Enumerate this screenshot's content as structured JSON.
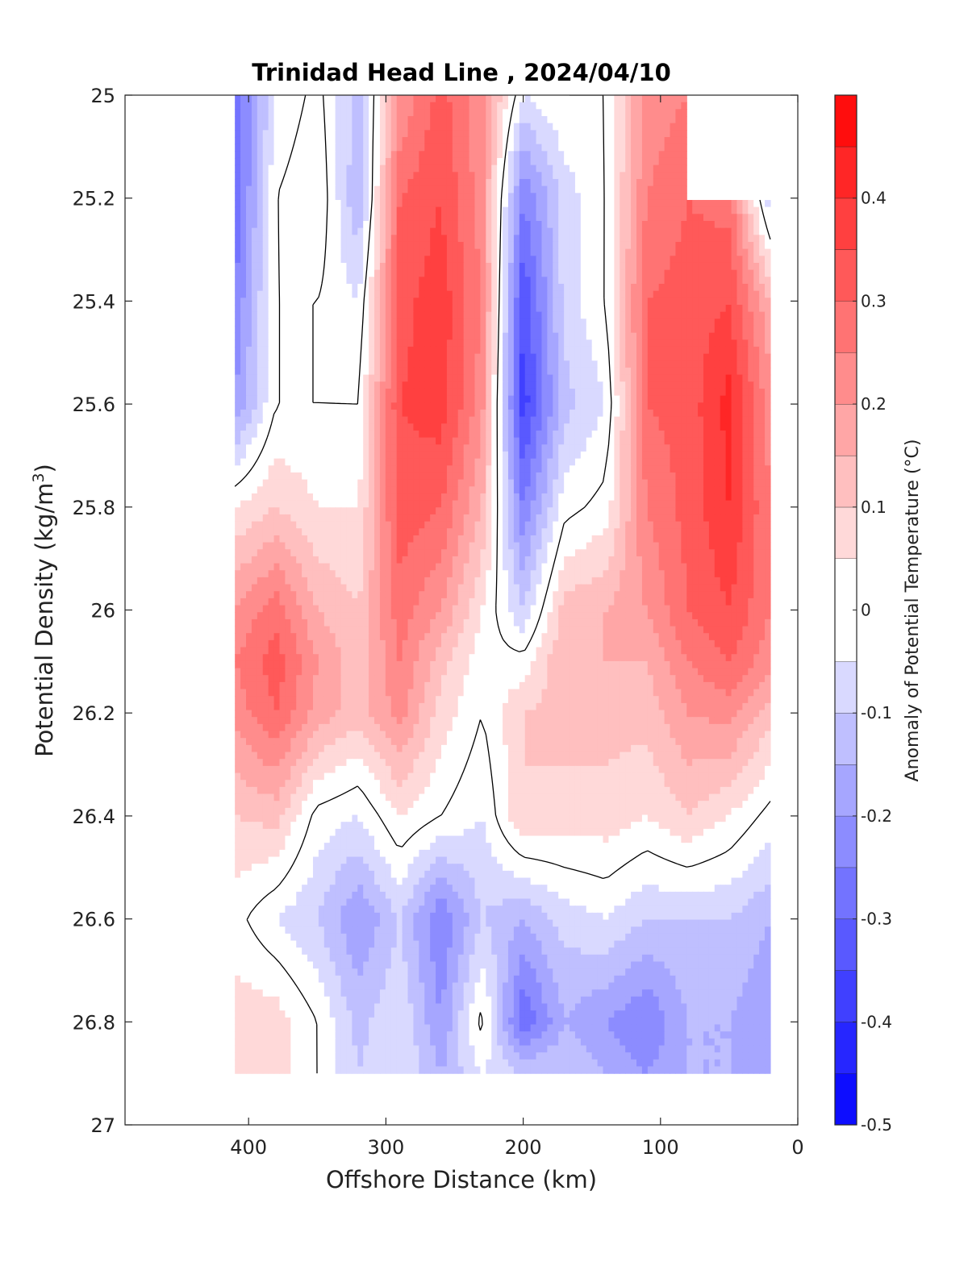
{
  "chart_data": {
    "type": "heatmap",
    "title": "Trinidad Head Line , 2024/04/10",
    "xlabel": "Offshore Distance (km)",
    "ylabel": "Potential Density (kg/m³)",
    "ylabel_parts": {
      "main": "Potential Density (kg/m",
      "sup": "3",
      "close": ")"
    },
    "colorbar_label": "Anomaly of Potential Temperature (°C)",
    "xlim": [
      490,
      0
    ],
    "ylim": [
      27,
      25
    ],
    "x_reversed": true,
    "y_reversed": true,
    "xticks": [
      400,
      300,
      200,
      100,
      0
    ],
    "xtick_labels": [
      "400",
      "300",
      "200",
      "100",
      "0"
    ],
    "yticks": [
      25,
      25.2,
      25.4,
      25.6,
      25.8,
      26,
      26.2,
      26.4,
      26.6,
      26.8,
      27
    ],
    "ytick_labels": [
      "25",
      "25.2",
      "25.4",
      "25.6",
      "25.8",
      "26",
      "26.2",
      "26.4",
      "26.6",
      "26.8",
      "27"
    ],
    "color_levels": [
      -0.5,
      -0.45,
      -0.4,
      -0.35,
      -0.3,
      -0.25,
      -0.2,
      -0.15,
      -0.1,
      -0.05,
      0.05,
      0.1,
      0.15,
      0.2,
      0.25,
      0.3,
      0.35,
      0.4,
      0.45,
      0.5
    ],
    "colorbar_ticks": [
      -0.5,
      -0.4,
      -0.3,
      -0.2,
      -0.1,
      0,
      0.1,
      0.2,
      0.3,
      0.4
    ],
    "colorbar_tick_labels": [
      "-0.5",
      "-0.4",
      "-0.3",
      "-0.2",
      "-0.1",
      "0",
      "0.1",
      "0.2",
      "0.3",
      "0.4"
    ],
    "colormap": {
      "negative_end": "#0000ff",
      "zero": "#ffffff",
      "positive_end": "#ff0000"
    },
    "zero_contour_color": "#000000",
    "grid": false,
    "x": [
      410,
      380,
      350,
      320,
      290,
      260,
      230,
      200,
      170,
      140,
      110,
      80,
      50,
      20
    ],
    "y": [
      25.0,
      25.2,
      25.4,
      25.6,
      25.8,
      26.0,
      26.1,
      26.2,
      26.4,
      26.6,
      26.8,
      26.9
    ],
    "z": [
      [
        -0.3,
        -0.05,
        0.02,
        -0.12,
        0.2,
        0.32,
        0.22,
        -0.05,
        0.0,
        0.0,
        0.22,
        0.25,
        null,
        null
      ],
      [
        -0.3,
        0.0,
        0.05,
        -0.15,
        0.3,
        0.35,
        0.22,
        -0.25,
        -0.08,
        0.0,
        0.25,
        0.3,
        0.28,
        -0.1
      ],
      [
        -0.25,
        0.0,
        0.0,
        -0.05,
        0.33,
        0.38,
        0.25,
        -0.35,
        -0.08,
        0.0,
        0.3,
        0.32,
        0.35,
        0.15
      ],
      [
        -0.2,
        0.0,
        0.0,
        0.0,
        0.35,
        0.38,
        0.22,
        -0.38,
        -0.12,
        -0.05,
        0.3,
        0.32,
        0.42,
        0.22
      ],
      [
        0.05,
        0.1,
        0.05,
        0.05,
        0.33,
        0.3,
        0.15,
        -0.25,
        -0.02,
        0.02,
        0.25,
        0.32,
        0.4,
        0.25
      ],
      [
        0.2,
        0.28,
        0.15,
        0.1,
        0.28,
        0.2,
        0.05,
        -0.1,
        0.12,
        0.15,
        0.2,
        0.3,
        0.35,
        0.25
      ],
      [
        0.25,
        0.33,
        0.2,
        0.12,
        0.25,
        0.12,
        0.02,
        0.02,
        0.15,
        0.15,
        0.15,
        0.25,
        0.3,
        0.22
      ],
      [
        0.22,
        0.3,
        0.18,
        0.12,
        0.22,
        0.08,
        0.0,
        0.1,
        0.12,
        0.12,
        0.12,
        0.2,
        0.22,
        0.12
      ],
      [
        0.1,
        0.12,
        -0.02,
        -0.05,
        0.05,
        0.0,
        -0.05,
        0.1,
        0.08,
        0.08,
        0.05,
        0.1,
        0.05,
        -0.02
      ],
      [
        0.02,
        -0.05,
        -0.1,
        -0.2,
        -0.1,
        -0.25,
        -0.1,
        -0.15,
        -0.08,
        -0.05,
        -0.1,
        -0.1,
        -0.1,
        -0.15
      ],
      [
        0.08,
        0.08,
        0.0,
        -0.12,
        -0.05,
        -0.2,
        0.02,
        -0.3,
        -0.15,
        -0.2,
        -0.25,
        -0.15,
        -0.15,
        -0.2
      ],
      [
        0.08,
        0.08,
        0.0,
        -0.1,
        -0.05,
        -0.15,
        -0.05,
        -0.1,
        -0.1,
        -0.15,
        -0.2,
        -0.15,
        -0.15,
        -0.15
      ]
    ]
  }
}
